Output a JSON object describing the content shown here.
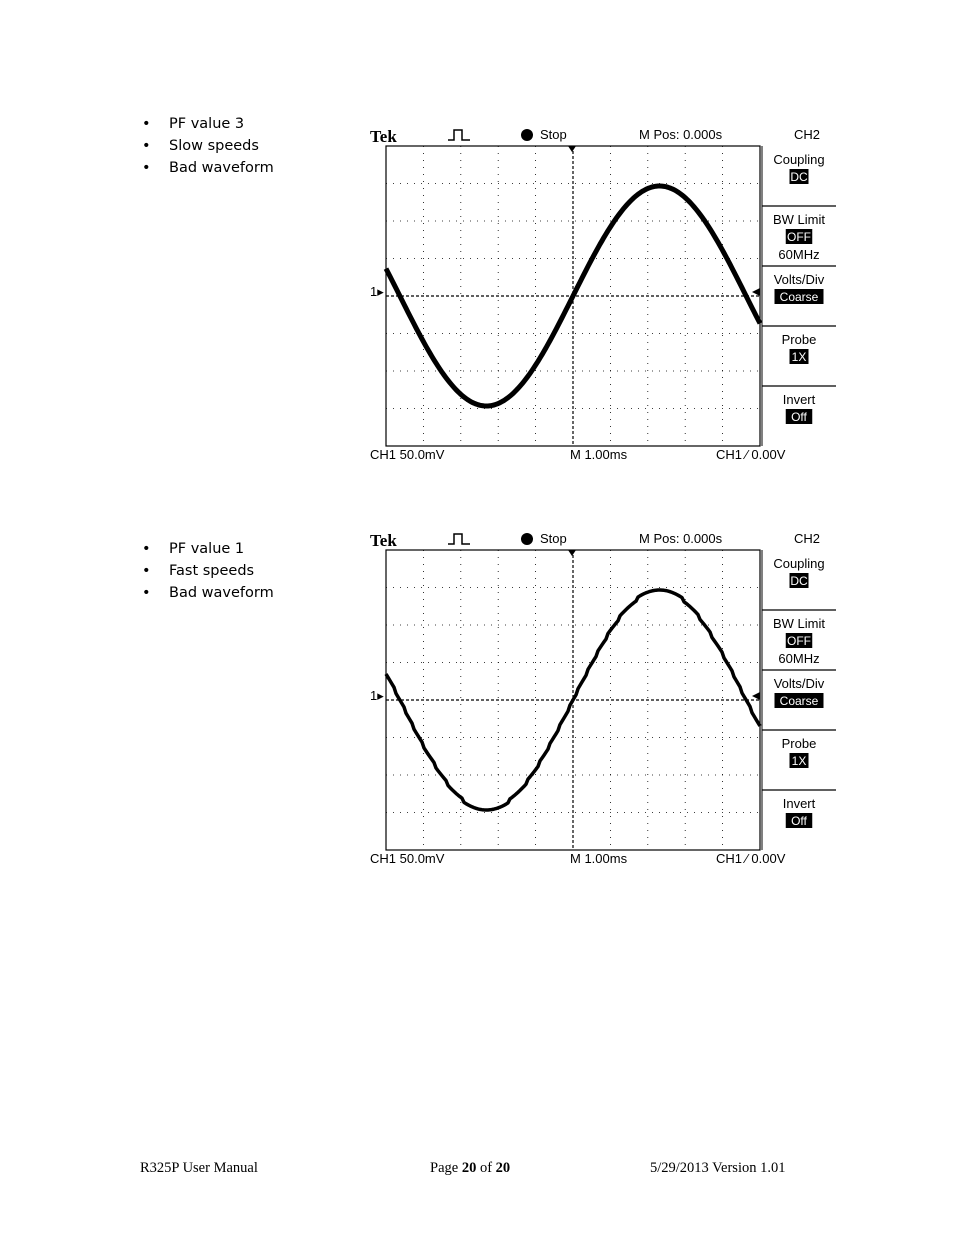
{
  "sections": [
    {
      "bullets": [
        "PF value 3",
        "Slow speeds",
        "Bad waveform"
      ],
      "scope": {
        "brand": "Tek",
        "run_state": "Stop",
        "m_pos": "M Pos: 0.000s",
        "channel": "CH2",
        "ch_scale": "CH1  50.0mV",
        "timebase": "M 1.00ms",
        "trigger": "CH1 ∕ 0.00V",
        "ref_marker": "1▸",
        "menu": [
          {
            "label": "Coupling",
            "value": "DC"
          },
          {
            "label": "BW Limit",
            "value": "OFF",
            "extra": "60MHz"
          },
          {
            "label": "Volts/Div",
            "value": "Coarse"
          },
          {
            "label": "Probe",
            "value": "1X"
          },
          {
            "label": "Invert",
            "value": "Off"
          }
        ],
        "waveform": "sine-noisy"
      }
    },
    {
      "bullets": [
        "PF value 1",
        "Fast speeds",
        "Bad waveform"
      ],
      "scope": {
        "brand": "Tek",
        "run_state": "Stop",
        "m_pos": "M Pos: 0.000s",
        "channel": "CH2",
        "ch_scale": "CH1  50.0mV",
        "timebase": "M 1.00ms",
        "trigger": "CH1 ∕ 0.00V",
        "ref_marker": "1▸",
        "menu": [
          {
            "label": "Coupling",
            "value": "DC"
          },
          {
            "label": "BW Limit",
            "value": "OFF",
            "extra": "60MHz"
          },
          {
            "label": "Volts/Div",
            "value": "Coarse"
          },
          {
            "label": "Probe",
            "value": "1X"
          },
          {
            "label": "Invert",
            "value": "Off"
          }
        ],
        "waveform": "sine-stepped"
      }
    }
  ],
  "footer": {
    "left": "R325P User Manual",
    "center_prefix": "Page ",
    "page": "20",
    "of": " of ",
    "total": "20",
    "right": "5/29/2013 Version 1.01"
  }
}
